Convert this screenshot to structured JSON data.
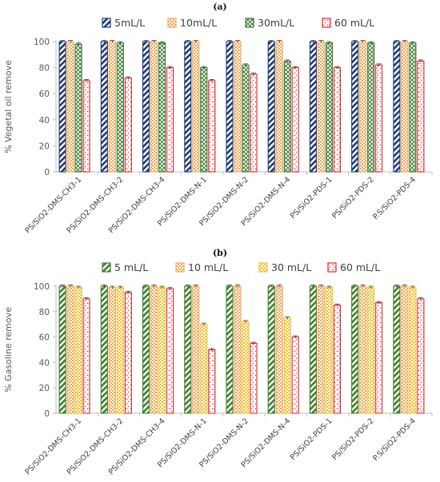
{
  "chart_data": [
    {
      "type": "bar",
      "panel_label": "(a)",
      "categories": [
        "PS/SiO2-DMS-CH3-1",
        "PS/SiO2-DMS-CH3-2",
        "PS/SiO2-DMS-CH3-4",
        "PS/SiO2-DMS-N-1",
        "PS/SiO2-DMS-N-2",
        "PS/SiO2-DMS-N-4",
        "PS/SiO2-PDS-1",
        "PS/SiO2-PDS-2",
        "P.S/SiO2-PDS-4"
      ],
      "series": [
        {
          "name": "5mL/L",
          "values": [
            100,
            100,
            100,
            100,
            100,
            100,
            100,
            100,
            100
          ]
        },
        {
          "name": "10mL/L",
          "values": [
            100,
            100,
            100,
            100,
            100,
            100,
            100,
            100,
            100
          ]
        },
        {
          "name": "30mL/L",
          "values": [
            98,
            99,
            99,
            80,
            82,
            85,
            99,
            99,
            99
          ]
        },
        {
          "name": "60 mL/L",
          "values": [
            70,
            72,
            80,
            70,
            75,
            80,
            80,
            82,
            85
          ]
        }
      ],
      "ylabel": "% Vegetal oil remove",
      "ylim": [
        0,
        100
      ],
      "yticks": [
        0,
        20,
        40,
        60,
        80,
        100
      ],
      "grid": false,
      "legend_position": "top",
      "colors": [
        "#1f3a7a",
        "#f4a85b",
        "#3e7a35",
        "#e8232a"
      ]
    },
    {
      "type": "bar",
      "panel_label": "(b)",
      "categories": [
        "PS/SiO2-DMS-CH3-1",
        "PS/SiO2-DMS-CH3-2",
        "PS/SiO2-DMS-CH3-4",
        "PS/SiO2-DMS-N-1",
        "PS/SiO2-DMS-N-2",
        "PS/SiO2-DMS-N-4",
        "PS/SiO2-PDS-1",
        "PS/SiO2-PDS-2",
        "P.S/SiO2-PDS-4"
      ],
      "series": [
        {
          "name": "5 mL/L",
          "values": [
            100,
            100,
            100,
            100,
            100,
            100,
            100,
            100,
            100
          ]
        },
        {
          "name": "10 mL/L",
          "values": [
            100,
            99,
            100,
            100,
            100,
            100,
            100,
            100,
            100
          ]
        },
        {
          "name": "30 mL/L",
          "values": [
            99,
            99,
            99,
            70,
            72,
            75,
            99,
            99,
            99
          ]
        },
        {
          "name": "60 mL/L",
          "values": [
            90,
            95,
            98,
            50,
            55,
            60,
            85,
            87,
            90
          ]
        }
      ],
      "ylabel": "% Gasoline remove",
      "ylim": [
        0,
        100
      ],
      "yticks": [
        0,
        20,
        40,
        60,
        80,
        100
      ],
      "grid": false,
      "legend_position": "top",
      "colors": [
        "#3f7f2b",
        "#f4a85b",
        "#f2c233",
        "#e8232a"
      ]
    }
  ]
}
